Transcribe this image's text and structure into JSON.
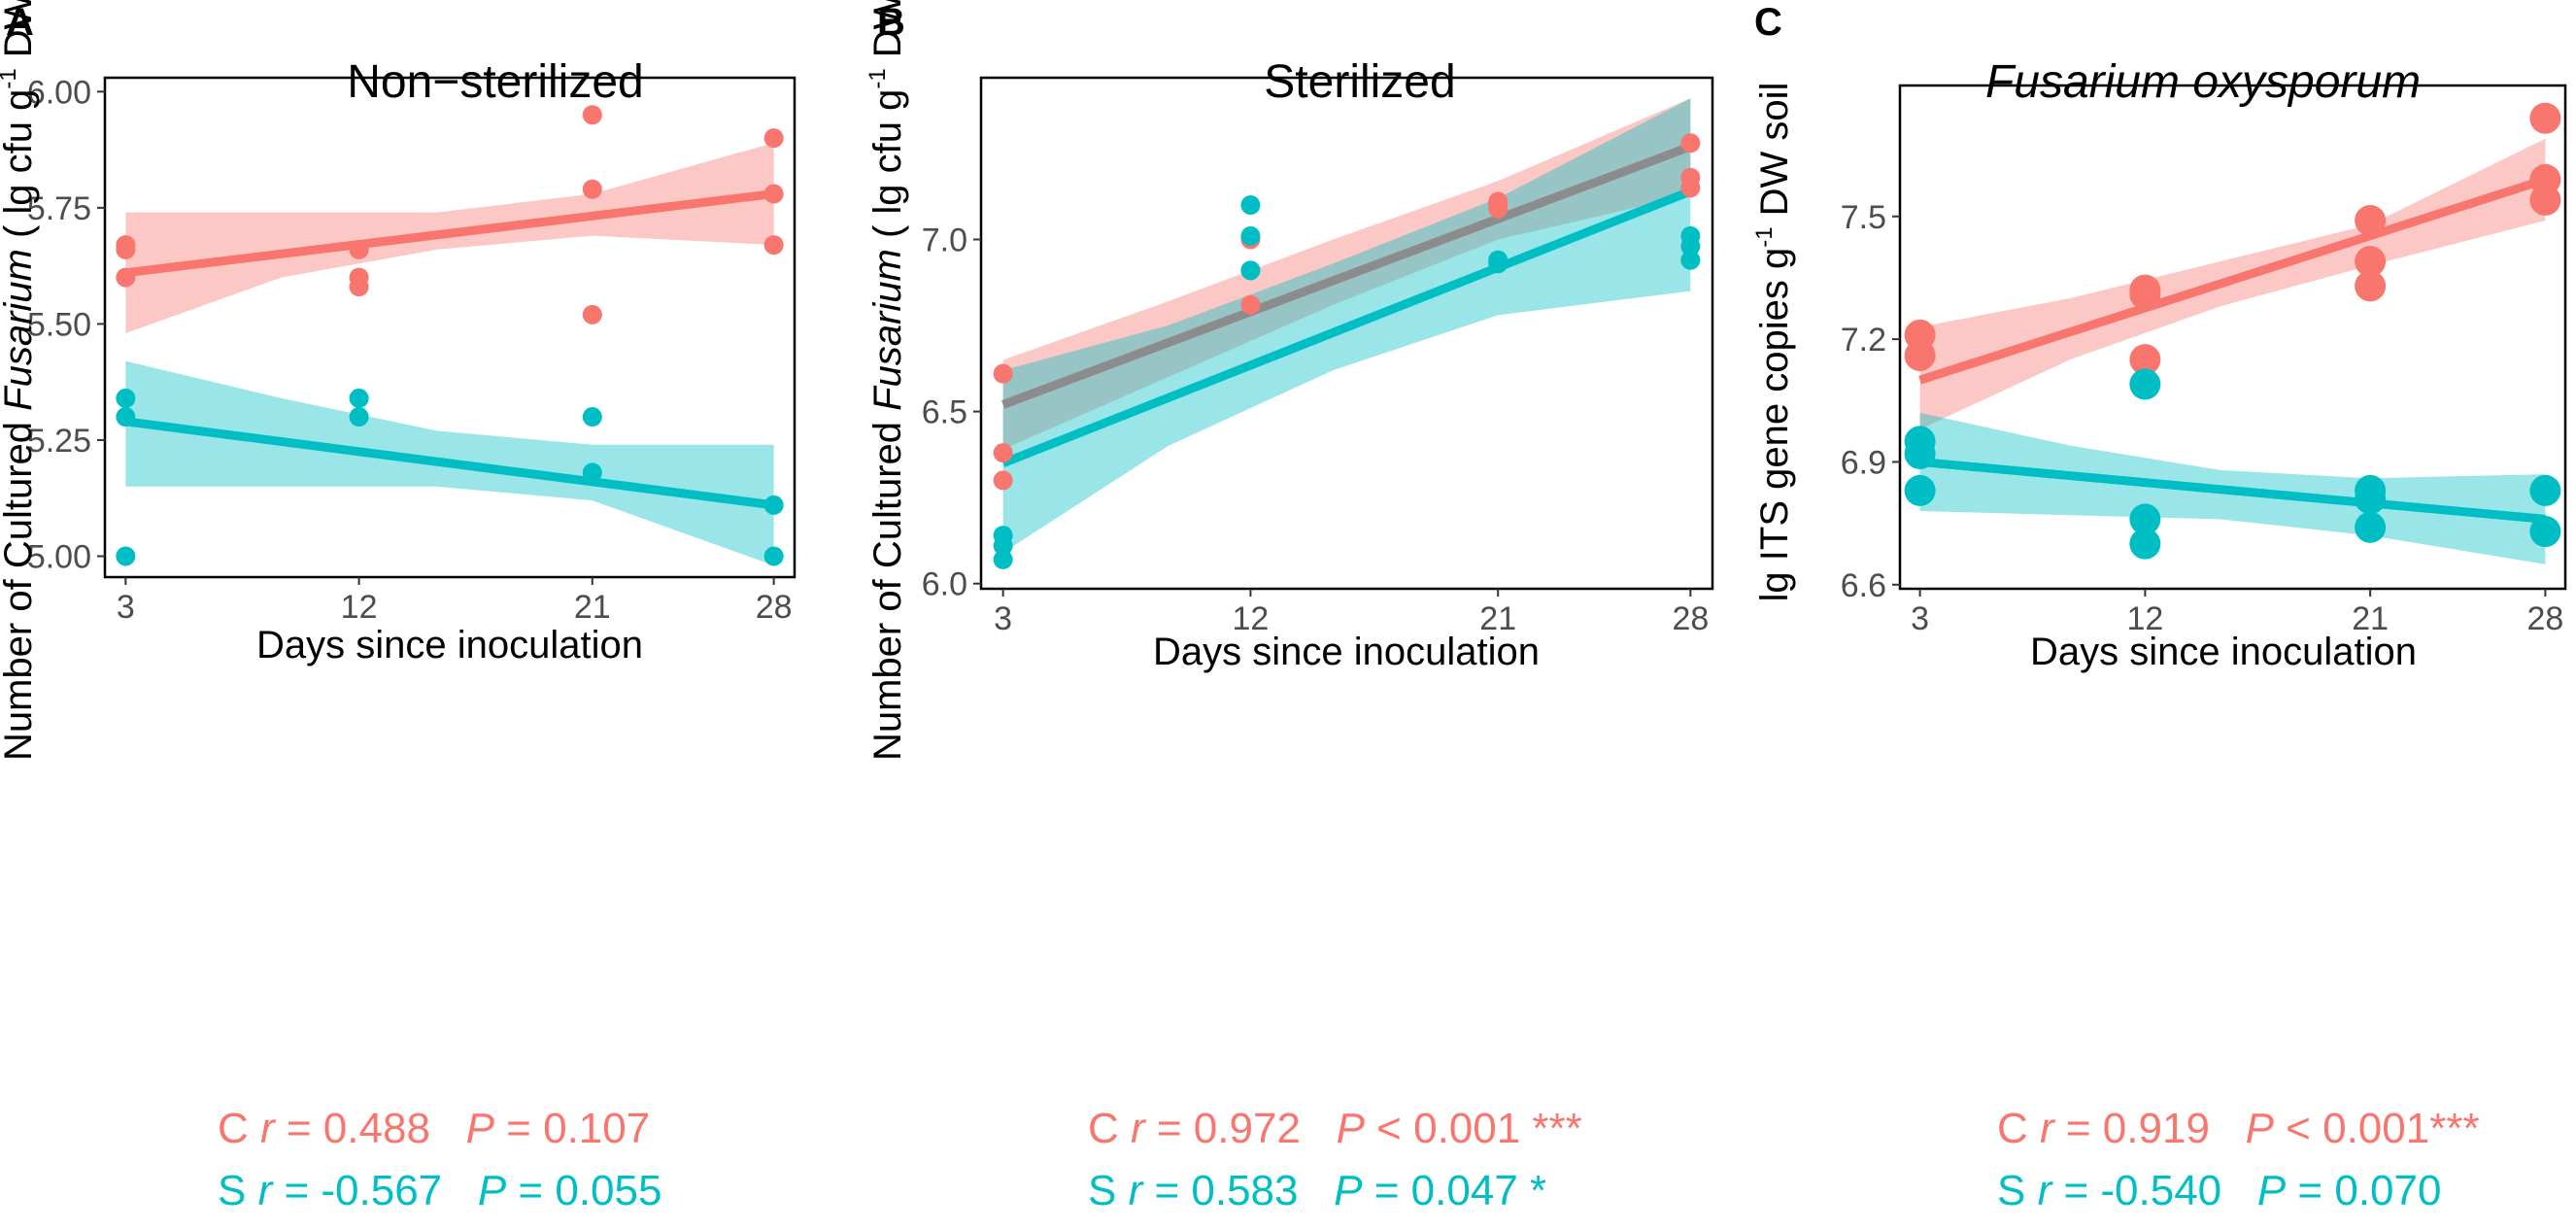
{
  "colors": {
    "control": "#f8766d",
    "sterile": "#00bfc4",
    "overlap": "#8c8c8c"
  },
  "chart_data": [
    {
      "type": "scatter",
      "panel": "A",
      "title": "Non−sterilized",
      "title_italic": false,
      "xlabel": "Days since inoculation",
      "ylabel_parts": [
        "Number of Cultured ",
        "Fusarium",
        " ( lg cfu g",
        "-1",
        "  DW soil )"
      ],
      "x_ticks": [
        3,
        12,
        21,
        28
      ],
      "x_tick_labels": [
        "3",
        "12",
        "21",
        "28"
      ],
      "xlim": [
        2.2,
        28.8
      ],
      "y_ticks": [
        5.0,
        5.25,
        5.5,
        5.75,
        6.0
      ],
      "y_tick_labels": [
        "5.00",
        "5.25",
        "5.50",
        "5.75",
        "6.00"
      ],
      "ylim": [
        4.955,
        6.03
      ],
      "series": [
        {
          "name": "C",
          "color": "#f8766d",
          "points": [
            [
              3,
              5.67
            ],
            [
              3,
              5.66
            ],
            [
              3,
              5.6
            ],
            [
              12,
              5.66
            ],
            [
              12,
              5.6
            ],
            [
              12,
              5.58
            ],
            [
              21,
              5.95
            ],
            [
              21,
              5.79
            ],
            [
              21,
              5.52
            ],
            [
              28,
              5.9
            ],
            [
              28,
              5.78
            ],
            [
              28,
              5.67
            ]
          ],
          "fit": [
            [
              3,
              5.61
            ],
            [
              28,
              5.78
            ]
          ],
          "band_upper": [
            [
              3,
              5.74
            ],
            [
              9,
              5.74
            ],
            [
              15,
              5.74
            ],
            [
              21,
              5.78
            ],
            [
              28,
              5.89
            ]
          ],
          "band_lower": [
            [
              3,
              5.48
            ],
            [
              9,
              5.6
            ],
            [
              15,
              5.66
            ],
            [
              21,
              5.69
            ],
            [
              28,
              5.67
            ]
          ]
        },
        {
          "name": "S",
          "color": "#00bfc4",
          "points": [
            [
              3,
              5.34
            ],
            [
              3,
              5.3
            ],
            [
              3,
              5.0
            ],
            [
              12,
              5.34
            ],
            [
              12,
              5.3
            ],
            [
              21,
              5.3
            ],
            [
              21,
              5.18
            ],
            [
              28,
              5.11
            ],
            [
              28,
              5.0
            ]
          ],
          "fit": [
            [
              3,
              5.29
            ],
            [
              28,
              5.11
            ]
          ],
          "band_upper": [
            [
              3,
              5.42
            ],
            [
              9,
              5.34
            ],
            [
              15,
              5.27
            ],
            [
              21,
              5.24
            ],
            [
              28,
              5.24
            ]
          ],
          "band_lower": [
            [
              3,
              5.15
            ],
            [
              9,
              5.15
            ],
            [
              15,
              5.15
            ],
            [
              21,
              5.12
            ],
            [
              28,
              4.98
            ]
          ]
        }
      ],
      "stats": [
        {
          "group": "C",
          "r_label": "r",
          "r_value": " = 0.488",
          "p_label": "P",
          "p_value": " = 0.107",
          "sig": ""
        },
        {
          "group": "S",
          "r_label": "r",
          "r_value": " = -0.567",
          "p_label": "P",
          "p_value": " = 0.055",
          "sig": ""
        }
      ]
    },
    {
      "type": "scatter",
      "panel": "B",
      "title": "Sterilized",
      "title_italic": false,
      "xlabel": "Days since inoculation",
      "ylabel_parts": [
        "Number of Cultured ",
        "Fusarium",
        " ( lg cfu g",
        "-1",
        "  DW soil )"
      ],
      "x_ticks": [
        3,
        12,
        21,
        28
      ],
      "x_tick_labels": [
        "3",
        "12",
        "21",
        "28"
      ],
      "xlim": [
        2.2,
        28.8
      ],
      "y_ticks": [
        6.0,
        6.5,
        7.0
      ],
      "y_tick_labels": [
        "6.0",
        "6.5",
        "7.0"
      ],
      "ylim": [
        5.985,
        7.47
      ],
      "series": [
        {
          "name": "C",
          "color": "#f8766d",
          "points": [
            [
              3,
              6.61
            ],
            [
              3,
              6.38
            ],
            [
              3,
              6.3
            ],
            [
              12,
              7.0
            ],
            [
              12,
              6.91
            ],
            [
              12,
              6.81
            ],
            [
              21,
              7.11
            ],
            [
              21,
              7.1
            ],
            [
              21,
              7.09
            ],
            [
              28,
              7.28
            ],
            [
              28,
              7.18
            ],
            [
              28,
              7.15
            ]
          ],
          "fit": [
            [
              3,
              6.52
            ],
            [
              28,
              7.27
            ]
          ],
          "band_upper": [
            [
              3,
              6.65
            ],
            [
              9,
              6.82
            ],
            [
              15,
              7.0
            ],
            [
              21,
              7.17
            ],
            [
              28,
              7.41
            ]
          ],
          "band_lower": [
            [
              3,
              6.39
            ],
            [
              9,
              6.6
            ],
            [
              15,
              6.81
            ],
            [
              21,
              7.0
            ],
            [
              28,
              7.13
            ]
          ]
        },
        {
          "name": "S",
          "color": "#00bfc4",
          "points": [
            [
              3,
              6.14
            ],
            [
              3,
              6.11
            ],
            [
              3,
              6.07
            ],
            [
              12,
              7.1
            ],
            [
              12,
              7.01
            ],
            [
              12,
              6.91
            ],
            [
              21,
              6.94
            ],
            [
              21,
              6.93
            ],
            [
              28,
              7.01
            ],
            [
              28,
              6.98
            ],
            [
              28,
              6.94
            ]
          ],
          "fit": [
            [
              3,
              6.35
            ],
            [
              28,
              7.14
            ]
          ],
          "band_upper": [
            [
              3,
              6.62
            ],
            [
              9,
              6.75
            ],
            [
              15,
              6.93
            ],
            [
              21,
              7.12
            ],
            [
              28,
              7.41
            ]
          ],
          "band_lower": [
            [
              3,
              6.09
            ],
            [
              9,
              6.4
            ],
            [
              15,
              6.62
            ],
            [
              21,
              6.78
            ],
            [
              28,
              6.85
            ]
          ]
        }
      ],
      "stats": [
        {
          "group": "C",
          "r_label": "r",
          "r_value": " = 0.972",
          "p_label": "P",
          "p_value": " < 0.001 ***",
          "sig": ""
        },
        {
          "group": "S",
          "r_label": "r",
          "r_value": " = 0.583",
          "p_label": "P",
          "p_value": " = 0.047 *",
          "sig": ""
        }
      ]
    },
    {
      "type": "scatter",
      "panel": "C",
      "title": "Fusarium oxysporum",
      "title_italic": true,
      "xlabel": "Days since inoculation",
      "ylabel_parts": [
        "lg ITS gene copies g",
        "-1",
        "  DW soil"
      ],
      "x_ticks": [
        3,
        12,
        21,
        28
      ],
      "x_tick_labels": [
        "3",
        "12",
        "21",
        "28"
      ],
      "xlim": [
        2.2,
        28.8
      ],
      "y_ticks": [
        6.6,
        6.9,
        7.2,
        7.5
      ],
      "y_tick_labels": [
        "6.6",
        "6.9",
        "7.2",
        "7.5"
      ],
      "ylim": [
        6.59,
        7.82
      ],
      "series": [
        {
          "name": "C",
          "color": "#f8766d",
          "points": [
            [
              3,
              7.21
            ],
            [
              3,
              7.16
            ],
            [
              12,
              7.32
            ],
            [
              12,
              7.31
            ],
            [
              12,
              7.15
            ],
            [
              21,
              7.49
            ],
            [
              21,
              7.39
            ],
            [
              21,
              7.33
            ],
            [
              28,
              7.74
            ],
            [
              28,
              7.59
            ],
            [
              28,
              7.54
            ]
          ],
          "fit": [
            [
              3,
              7.1
            ],
            [
              28,
              7.59
            ]
          ],
          "band_upper": [
            [
              3,
              7.23
            ],
            [
              9,
              7.3
            ],
            [
              15,
              7.39
            ],
            [
              21,
              7.48
            ],
            [
              28,
              7.69
            ]
          ],
          "band_lower": [
            [
              3,
              6.98
            ],
            [
              9,
              7.15
            ],
            [
              15,
              7.28
            ],
            [
              21,
              7.38
            ],
            [
              28,
              7.49
            ]
          ]
        },
        {
          "name": "S",
          "color": "#00bfc4",
          "points": [
            [
              3,
              6.95
            ],
            [
              3,
              6.92
            ],
            [
              3,
              6.83
            ],
            [
              12,
              7.09
            ],
            [
              12,
              6.76
            ],
            [
              12,
              6.7
            ],
            [
              21,
              6.83
            ],
            [
              21,
              6.81
            ],
            [
              21,
              6.74
            ],
            [
              28,
              6.83
            ],
            [
              28,
              6.73
            ]
          ],
          "fit": [
            [
              3,
              6.9
            ],
            [
              28,
              6.76
            ]
          ],
          "band_upper": [
            [
              3,
              7.02
            ],
            [
              9,
              6.94
            ],
            [
              15,
              6.88
            ],
            [
              21,
              6.86
            ],
            [
              28,
              6.87
            ]
          ],
          "band_lower": [
            [
              3,
              6.78
            ],
            [
              9,
              6.77
            ],
            [
              15,
              6.76
            ],
            [
              21,
              6.72
            ],
            [
              28,
              6.65
            ]
          ]
        }
      ],
      "stats": [
        {
          "group": "C",
          "r_label": "r",
          "r_value": " = 0.919",
          "p_label": "P",
          "p_value": " < 0.001***",
          "sig": ""
        },
        {
          "group": "S",
          "r_label": "r",
          "r_value": " = -0.540",
          "p_label": "P",
          "p_value": " = 0.070",
          "sig": ""
        }
      ]
    }
  ]
}
